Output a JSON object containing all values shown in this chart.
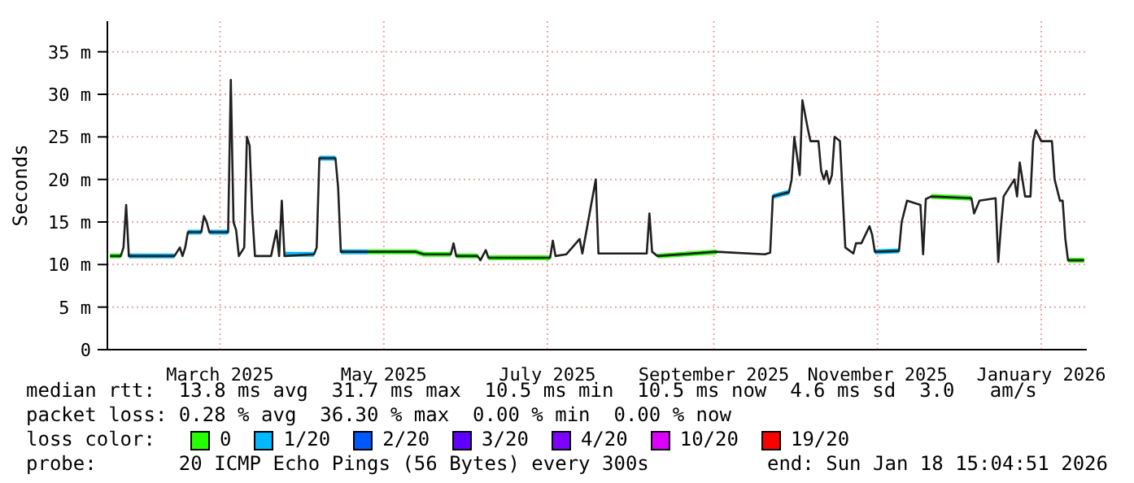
{
  "chart_data": {
    "type": "line",
    "ylabel": "Seconds",
    "legend_title": "loss color:",
    "legend": "bottom",
    "grid": true,
    "marker": "none",
    "line_style": "solid",
    "xlim": [
      "2025-01-18",
      "2026-01-18"
    ],
    "xticks": [
      {
        "value": "2025-03-01",
        "label": "March 2025"
      },
      {
        "value": "2025-05-01",
        "label": "May 2025"
      },
      {
        "value": "2025-07-01",
        "label": "July 2025"
      },
      {
        "value": "2025-09-01",
        "label": "September 2025"
      },
      {
        "value": "2025-11-01",
        "label": "November 2025"
      },
      {
        "value": "2026-01-01",
        "label": "January 2026"
      }
    ],
    "ylim": [
      0,
      38.6
    ],
    "yticks": [
      0,
      {
        "value": 5,
        "label": "5 m"
      },
      {
        "value": 10,
        "label": "10 m"
      },
      {
        "value": 15,
        "label": "15 m"
      },
      {
        "value": 20,
        "label": "20 m"
      },
      {
        "value": 25,
        "label": "25 m"
      },
      {
        "value": 30,
        "label": "30 m"
      },
      {
        "value": 35,
        "label": "35 m"
      }
    ],
    "x": [
      "2025-01-19",
      "2025-01-23",
      "2025-01-24",
      "2025-01-25",
      "2025-01-26",
      "2025-02-12",
      "2025-02-14",
      "2025-02-15",
      "2025-02-16",
      "2025-02-17",
      "2025-02-22",
      "2025-02-23",
      "2025-02-24",
      "2025-02-25",
      "2025-03-04",
      "2025-03-05",
      "2025-03-06",
      "2025-03-07",
      "2025-03-08",
      "2025-03-10",
      "2025-03-11",
      "2025-03-12",
      "2025-03-13",
      "2025-03-14",
      "2025-03-20",
      "2025-03-22",
      "2025-03-23",
      "2025-03-24",
      "2025-03-25",
      "2025-04-05",
      "2025-04-06",
      "2025-04-07",
      "2025-04-13",
      "2025-04-14",
      "2025-04-15",
      "2025-05-13",
      "2025-05-16",
      "2025-05-26",
      "2025-05-27",
      "2025-05-28",
      "2025-06-05",
      "2025-06-06",
      "2025-06-08",
      "2025-06-09",
      "2025-07-02",
      "2025-07-03",
      "2025-07-04",
      "2025-07-08",
      "2025-07-13",
      "2025-07-14",
      "2025-07-19",
      "2025-07-20",
      "2025-08-07",
      "2025-08-08",
      "2025-08-09",
      "2025-08-11",
      "2025-09-02",
      "2025-09-20",
      "2025-09-22",
      "2025-09-23",
      "2025-09-29",
      "2025-09-30",
      "2025-10-01",
      "2025-10-03",
      "2025-10-04",
      "2025-10-06",
      "2025-10-07",
      "2025-10-10",
      "2025-10-11",
      "2025-10-12",
      "2025-10-13",
      "2025-10-14",
      "2025-10-15",
      "2025-10-16",
      "2025-10-18",
      "2025-10-20",
      "2025-10-23",
      "2025-10-24",
      "2025-10-26",
      "2025-10-29",
      "2025-10-30",
      "2025-10-31",
      "2025-11-09",
      "2025-11-10",
      "2025-11-12",
      "2025-11-17",
      "2025-11-18",
      "2025-11-19",
      "2025-11-21",
      "2025-12-06",
      "2025-12-07",
      "2025-12-09",
      "2025-12-15",
      "2025-12-16",
      "2025-12-17",
      "2025-12-18",
      "2025-12-22",
      "2025-12-23",
      "2025-12-24",
      "2025-12-26",
      "2025-12-28",
      "2025-12-29",
      "2025-12-30",
      "2026-01-01",
      "2026-01-05",
      "2026-01-06",
      "2026-01-08",
      "2026-01-09",
      "2026-01-10",
      "2026-01-11",
      "2026-01-17"
    ],
    "series": [
      {
        "name": "0",
        "color": "#26ff00",
        "x": [
          "2025-01-19",
          "2025-01-23",
          "2025-01-24",
          "2025-04-25",
          "2025-05-13",
          "2025-05-16",
          "2025-05-26",
          "2025-05-27",
          "2025-05-28",
          "2025-06-05",
          "2025-06-07",
          "2025-06-09",
          "2025-07-02",
          "2025-07-20",
          "2025-08-11",
          "2025-09-02",
          "2025-09-10",
          "2025-11-21",
          "2025-12-06",
          "2025-12-10",
          "2026-01-11",
          "2026-01-17"
        ],
        "values": [
          11,
          11,
          null,
          11.5,
          11.5,
          11.2,
          11.2,
          null,
          11,
          11,
          null,
          10.8,
          10.8,
          null,
          11,
          11.5,
          null,
          18,
          17.8,
          null,
          10.5,
          10.5
        ]
      },
      {
        "name": "1/20",
        "color": "#00b8ff",
        "x": [
          "2025-01-26",
          "2025-02-12",
          "2025-02-13",
          "2025-02-17",
          "2025-02-22",
          "2025-02-23",
          "2025-02-25",
          "2025-03-04",
          "2025-03-05",
          "2025-03-25",
          "2025-04-05",
          "2025-04-06",
          "2025-04-07",
          "2025-04-13",
          "2025-04-14",
          "2025-04-15",
          "2025-04-25",
          "2025-05-01",
          "2025-09-23",
          "2025-09-29",
          "2025-09-30",
          "2025-10-31",
          "2025-11-09"
        ],
        "values": [
          11,
          11,
          null,
          13.8,
          13.8,
          null,
          13.8,
          13.8,
          null,
          11.2,
          11.2,
          null,
          22.5,
          22.5,
          null,
          11.5,
          11.5,
          null,
          18,
          18.5,
          null,
          11.5,
          11.6
        ]
      },
      {
        "name": "2/20",
        "color": "#0059ff",
        "values": [
          null,
          null,
          null,
          null,
          null,
          null,
          null,
          null,
          null,
          null,
          null,
          null,
          null,
          null,
          null,
          null,
          null,
          null,
          null,
          null,
          null,
          null,
          null,
          null,
          null,
          null,
          null,
          null,
          null,
          null,
          null,
          null,
          null,
          null,
          null,
          null,
          null,
          null,
          null,
          null,
          null,
          null,
          null,
          null,
          null,
          null,
          null,
          null,
          null,
          null,
          null,
          null,
          null,
          null,
          null,
          null,
          null,
          null,
          null,
          null,
          null,
          null,
          null,
          null,
          null,
          null,
          null,
          null,
          null,
          null,
          null,
          null,
          null,
          null,
          null,
          null,
          null,
          null,
          null,
          null,
          null,
          null,
          null,
          null,
          null,
          null,
          null,
          null,
          null,
          null,
          null,
          null,
          null,
          null,
          null,
          null,
          null,
          null,
          null,
          null,
          null,
          null,
          null,
          null,
          null,
          null,
          null,
          null,
          null,
          null,
          null
        ]
      },
      {
        "name": "3/20",
        "color": "#5e00ff",
        "values": [
          null,
          null,
          null,
          null,
          null,
          null,
          null,
          null,
          null,
          null,
          null,
          null,
          null,
          null,
          null,
          null,
          null,
          null,
          null,
          null,
          null,
          null,
          null,
          null,
          null,
          null,
          null,
          null,
          null,
          null,
          null,
          null,
          null,
          null,
          null,
          null,
          null,
          null,
          null,
          null,
          null,
          null,
          null,
          null,
          null,
          null,
          null,
          null,
          null,
          null,
          null,
          null,
          null,
          null,
          null,
          null,
          null,
          null,
          null,
          null,
          null,
          null,
          null,
          null,
          null,
          null,
          null,
          null,
          null,
          null,
          null,
          null,
          null,
          null,
          null,
          null,
          null,
          null,
          null,
          null,
          null,
          null,
          null,
          null,
          null,
          null,
          null,
          null,
          null,
          null,
          null,
          null,
          null,
          null,
          null,
          null,
          null,
          null,
          null,
          null,
          null,
          null,
          null,
          null,
          null,
          null,
          null,
          null,
          null,
          null,
          null
        ]
      },
      {
        "name": "4/20",
        "color": "#7e00ff",
        "values": [
          null,
          null,
          null,
          null,
          null,
          null,
          null,
          null,
          null,
          null,
          null,
          null,
          null,
          null,
          null,
          null,
          null,
          null,
          null,
          null,
          null,
          null,
          null,
          null,
          null,
          null,
          null,
          null,
          null,
          null,
          null,
          null,
          null,
          null,
          null,
          null,
          null,
          null,
          null,
          null,
          null,
          null,
          null,
          null,
          null,
          null,
          null,
          null,
          null,
          null,
          null,
          null,
          null,
          null,
          null,
          null,
          null,
          null,
          null,
          null,
          null,
          null,
          null,
          null,
          null,
          null,
          null,
          null,
          null,
          null,
          null,
          null,
          null,
          null,
          null,
          null,
          null,
          null,
          null,
          null,
          null,
          null,
          null,
          null,
          null,
          null,
          null,
          null,
          null,
          null,
          null,
          null,
          null,
          null,
          null,
          null,
          null,
          null,
          null,
          null,
          null,
          null,
          null,
          null,
          null,
          null,
          null,
          null,
          null,
          null,
          null
        ]
      },
      {
        "name": "10/20",
        "color": "#dd00ff",
        "values": [
          null,
          null,
          null,
          null,
          null,
          null,
          null,
          null,
          null,
          null,
          null,
          null,
          null,
          null,
          null,
          null,
          null,
          null,
          null,
          null,
          null,
          null,
          null,
          null,
          null,
          null,
          null,
          null,
          null,
          null,
          null,
          null,
          null,
          null,
          null,
          null,
          null,
          null,
          null,
          null,
          null,
          null,
          null,
          null,
          null,
          null,
          null,
          null,
          null,
          null,
          null,
          null,
          null,
          null,
          null,
          null,
          null,
          null,
          null,
          null,
          null,
          null,
          null,
          null,
          null,
          null,
          null,
          null,
          null,
          null,
          null,
          null,
          null,
          null,
          null,
          null,
          null,
          null,
          null,
          null,
          null,
          null,
          null,
          null,
          null,
          null,
          null,
          null,
          null,
          null,
          null,
          null,
          null,
          null,
          null,
          null,
          null,
          null,
          null,
          null,
          null,
          null,
          null,
          null,
          null,
          null,
          null,
          null,
          null,
          null,
          null
        ]
      },
      {
        "name": "19/20",
        "color": "#ff0000",
        "values": [
          null,
          null,
          null,
          null,
          null,
          null,
          null,
          null,
          null,
          null,
          null,
          null,
          null,
          null,
          null,
          null,
          null,
          null,
          null,
          null,
          null,
          null,
          null,
          null,
          null,
          null,
          null,
          null,
          null,
          null,
          null,
          null,
          null,
          null,
          null,
          null,
          null,
          null,
          null,
          null,
          null,
          null,
          null,
          null,
          null,
          null,
          null,
          null,
          null,
          null,
          null,
          null,
          null,
          null,
          null,
          null,
          null,
          null,
          null,
          null,
          null,
          null,
          null,
          null,
          null,
          null,
          null,
          null,
          null,
          null,
          null,
          null,
          null,
          null,
          null,
          null,
          null,
          null,
          null,
          null,
          null,
          null,
          null,
          null,
          null,
          null,
          null,
          null,
          null,
          null,
          null,
          null,
          null,
          null,
          null,
          null,
          null,
          null,
          null,
          null,
          null,
          null,
          null,
          null,
          null,
          null,
          null,
          null,
          null,
          null,
          null
        ]
      },
      {
        "color": "#202020",
        "values": [
          11,
          11,
          12,
          17,
          11,
          11,
          12,
          11,
          12,
          13.8,
          13.8,
          15.7,
          15,
          13.8,
          13.8,
          31.7,
          15,
          14,
          11,
          12,
          25,
          24,
          16,
          11,
          11,
          14,
          11,
          17.5,
          11,
          11.2,
          12,
          22.5,
          22.5,
          19,
          11.5,
          11.5,
          11.2,
          11.2,
          12.5,
          11,
          11,
          10.5,
          11.7,
          10.8,
          10.8,
          12.8,
          11,
          11.2,
          13,
          11.3,
          20,
          11.3,
          11.3,
          16,
          11.5,
          11,
          11.5,
          11.2,
          11.4,
          18,
          18.5,
          20,
          25,
          20.5,
          29.3,
          26,
          24.5,
          24.5,
          21,
          20,
          21,
          19.5,
          20.5,
          25,
          24.5,
          12,
          11.3,
          12.5,
          12.5,
          14.5,
          13.5,
          11.5,
          11.6,
          15,
          17.5,
          17,
          11.2,
          17.7,
          18,
          17.8,
          16,
          17.5,
          17.8,
          10.3,
          14.5,
          18,
          20,
          18,
          22,
          18,
          18,
          24.5,
          25.8,
          24.5,
          24.5,
          20,
          17.5,
          17.5,
          13,
          10.5,
          10.5
        ]
      }
    ],
    "annotations": [
      "median rtt:  13.8 ms avg  31.7 ms max  10.5 ms min  10.5 ms now  4.6 ms sd  3.0   am/s",
      "packet loss: 0.28 % avg  36.30 % max  0.00 % min  0.00 % now",
      "probe:       20 ICMP Echo Pings (56 Bytes) every 300s",
      "end: Sun Jan 18 15:04:51 2026"
    ]
  }
}
